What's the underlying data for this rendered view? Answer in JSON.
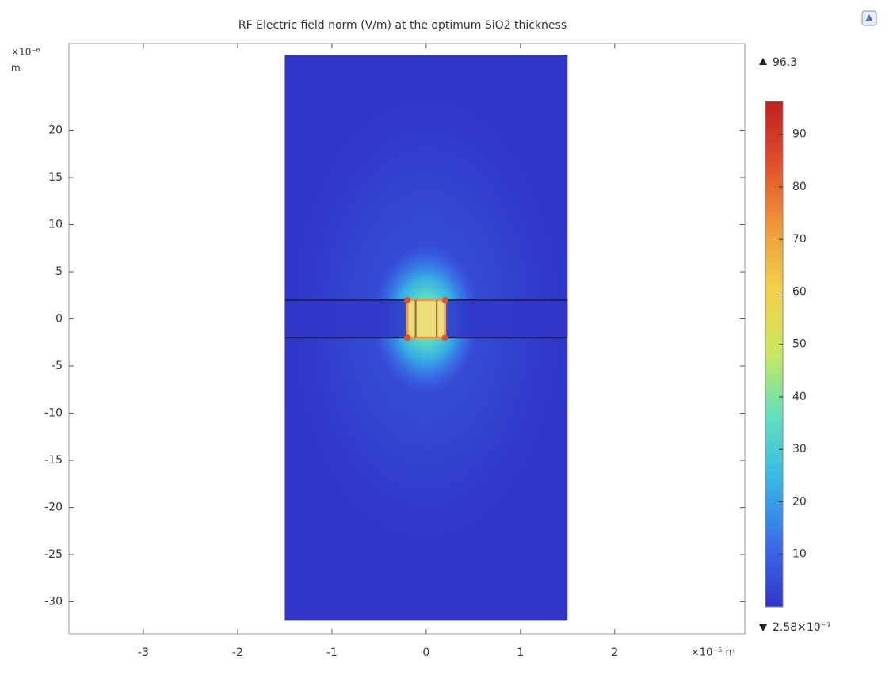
{
  "chart_data": {
    "type": "surface",
    "title": "RF Electric field norm (V/m) at the optimum SiO2 thickness",
    "x_axis_label": "×10⁻⁵ m",
    "y_multiplier": "×10⁻⁶",
    "y_unit": "m",
    "xlim": [
      -3.79,
      3.38
    ],
    "xticks": [
      -3,
      -2,
      -1,
      0,
      1,
      2
    ],
    "ylim": [
      -33.4,
      29.2
    ],
    "yticks": [
      20,
      15,
      10,
      5,
      0,
      -5,
      -10,
      -15,
      -20,
      -25,
      -30
    ],
    "domain_x": [
      -1.5,
      1.5
    ],
    "domain_y": [
      -32,
      28
    ],
    "layer_y": [
      -2,
      2
    ],
    "electrode_x": [
      -0.2,
      0.2
    ],
    "colorbar": {
      "range": [
        {
          "value": 2.58e-07,
          "label": "2.58×10⁻⁷"
        },
        96.3
      ],
      "ticks": [
        10,
        20,
        30,
        40,
        50,
        60,
        70,
        80,
        90
      ],
      "colormap": [
        "#3035c8",
        "#3a6ee8",
        "#36b7e6",
        "#5fe0c0",
        "#c8e860",
        "#f2d24a",
        "#f09a3a",
        "#e0502a",
        "#c02020"
      ]
    }
  }
}
